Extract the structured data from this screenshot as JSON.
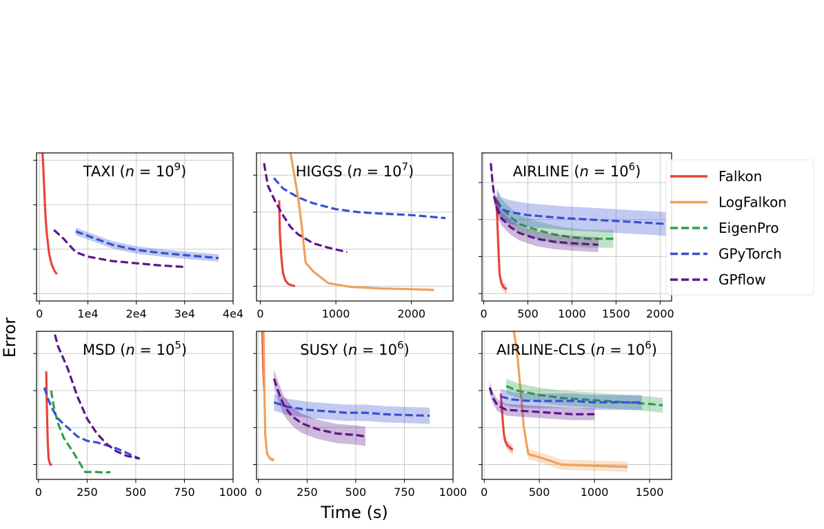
{
  "figure": {
    "ylabel": "Error",
    "xlabel": "Time (s)",
    "legend_position": "right of top-right panel",
    "series": [
      {
        "name": "Falkon",
        "color": "#e8443a",
        "style": "solid"
      },
      {
        "name": "LogFalkon",
        "color": "#f0a05a",
        "style": "solid"
      },
      {
        "name": "EigenPro",
        "color": "#2ca048",
        "style": "dashed"
      },
      {
        "name": "GPyTorch",
        "color": "#3550d2",
        "style": "dashed"
      },
      {
        "name": "GPflow",
        "color": "#5c138c",
        "style": "dashed"
      }
    ]
  },
  "chart_data": [
    {
      "type": "line",
      "title_name": "TAXI",
      "title_exp": "9",
      "xlim": [
        -600,
        40000
      ],
      "ylim": [
        0,
        10
      ],
      "xticks": [
        0,
        10000,
        20000,
        30000,
        40000
      ],
      "xtick_labels": [
        "0",
        "1e4",
        "2e4",
        "3e4",
        "4e4"
      ],
      "yticks": [
        0.5,
        3.5,
        6.5,
        9.5
      ],
      "grid": true,
      "series": [
        {
          "name": "Falkon",
          "x": [
            600,
            800,
            1000,
            1200,
            1500,
            2000,
            2500,
            3000,
            3600
          ],
          "y": [
            10.2,
            9,
            7.5,
            6,
            4.6,
            3.2,
            2.5,
            2.1,
            1.8
          ]
        },
        {
          "name": "GPyTorch",
          "x": [
            7500,
            10000,
            15000,
            20000,
            25000,
            30000,
            37000
          ],
          "y": [
            4.7,
            4.4,
            3.8,
            3.45,
            3.25,
            3.1,
            2.9
          ],
          "band": 0.25
        },
        {
          "name": "GPflow",
          "x": [
            3000,
            5000,
            7500,
            10000,
            15000,
            20000,
            25000,
            30000
          ],
          "y": [
            4.8,
            4.2,
            3.3,
            3.0,
            2.7,
            2.55,
            2.4,
            2.3
          ]
        }
      ]
    },
    {
      "type": "line",
      "title_name": "HIGGS",
      "title_exp": "7",
      "xlim": [
        -50,
        2550
      ],
      "ylim": [
        0,
        10
      ],
      "xticks": [
        0,
        1000,
        2000
      ],
      "xtick_labels": [
        "0",
        "1000",
        "2000"
      ],
      "yticks": [
        1.0,
        3.5,
        6.0,
        8.5
      ],
      "grid": true,
      "series": [
        {
          "name": "Falkon",
          "x": [
            250,
            260,
            280,
            300,
            330,
            370,
            420,
            460
          ],
          "y": [
            6.8,
            4.5,
            2.9,
            1.9,
            1.4,
            1.15,
            1.05,
            1.0
          ]
        },
        {
          "name": "LogFalkon",
          "x": [
            390,
            400,
            450,
            500,
            550,
            600,
            700,
            900,
            1200,
            1600,
            2000,
            2300
          ],
          "y": [
            10.5,
            10,
            8.5,
            7.0,
            5.0,
            2.6,
            2.0,
            1.2,
            0.95,
            0.85,
            0.8,
            0.75
          ]
        },
        {
          "name": "GPyTorch",
          "x": [
            180,
            300,
            500,
            700,
            1000,
            1300,
            1600,
            2000,
            2450
          ],
          "y": [
            8.3,
            7.6,
            7.0,
            6.6,
            6.2,
            6.0,
            5.9,
            5.8,
            5.6
          ]
        },
        {
          "name": "GPflow",
          "x": [
            50,
            100,
            200,
            300,
            400,
            500,
            700,
            900,
            1150
          ],
          "y": [
            9.3,
            7.8,
            6.7,
            5.8,
            5.0,
            4.5,
            3.9,
            3.6,
            3.3
          ]
        }
      ]
    },
    {
      "type": "line",
      "title_name": "AIRLINE",
      "title_exp": "6",
      "xlim": [
        -20,
        2130
      ],
      "ylim": [
        0,
        10
      ],
      "xticks": [
        0,
        500,
        1000,
        1500,
        2000
      ],
      "xtick_labels": [
        "0",
        "500",
        "1000",
        "1500",
        "2000"
      ],
      "yticks": [
        0.5,
        3.0,
        5.5,
        8.0
      ],
      "grid": true,
      "series": [
        {
          "name": "Falkon",
          "x": [
            140,
            150,
            160,
            170,
            180,
            200,
            230,
            260
          ],
          "y": [
            7.0,
            6.0,
            4.5,
            3.0,
            1.8,
            1.2,
            0.9,
            0.8
          ],
          "band": 0.3
        },
        {
          "name": "EigenPro",
          "x": [
            150,
            200,
            300,
            400,
            600,
            800,
            1000,
            1200,
            1470
          ],
          "y": [
            6.8,
            6.3,
            5.7,
            5.2,
            4.8,
            4.5,
            4.3,
            4.2,
            4.2
          ],
          "band": 0.6
        },
        {
          "name": "GPyTorch",
          "x": [
            150,
            200,
            300,
            500,
            700,
            900,
            1200,
            1500,
            1800,
            2070
          ],
          "y": [
            6.8,
            6.2,
            6.0,
            5.8,
            5.7,
            5.6,
            5.5,
            5.4,
            5.3,
            5.2
          ],
          "band": 0.8
        },
        {
          "name": "GPflow",
          "x": [
            80,
            100,
            120,
            150,
            200,
            300,
            400,
            600,
            800,
            1000,
            1300
          ],
          "y": [
            9.3,
            8.0,
            7.0,
            6.3,
            5.6,
            5.0,
            4.6,
            4.2,
            4.0,
            3.9,
            3.8
          ],
          "band": 0.5
        }
      ]
    },
    {
      "type": "line",
      "title_name": "MSD",
      "title_exp": "5",
      "xlim": [
        -10,
        1000
      ],
      "ylim": [
        0,
        10
      ],
      "xticks": [
        0,
        250,
        500,
        750,
        1000
      ],
      "xtick_labels": [
        "0",
        "250",
        "500",
        "750",
        "1000"
      ],
      "yticks": [
        1.0,
        3.5,
        6.0,
        8.5
      ],
      "grid": true,
      "series": [
        {
          "name": "Falkon",
          "x": [
            40,
            42,
            45,
            48,
            52,
            60,
            70
          ],
          "y": [
            7.3,
            5.5,
            3.8,
            2.4,
            1.4,
            1.0,
            1.0
          ]
        },
        {
          "name": "EigenPro",
          "x": [
            65,
            80,
            100,
            130,
            180,
            240,
            300,
            340,
            370
          ],
          "y": [
            6.0,
            4.8,
            3.8,
            2.8,
            1.8,
            0.5,
            0.5,
            0.45,
            0.5
          ]
        },
        {
          "name": "GPyTorch",
          "x": [
            30,
            50,
            70,
            100,
            150,
            200,
            250,
            300,
            400,
            520
          ],
          "y": [
            6.2,
            5.4,
            4.8,
            4.1,
            3.5,
            2.9,
            2.6,
            2.5,
            2.1,
            1.4
          ]
        },
        {
          "name": "GPflow",
          "x": [
            70,
            80,
            100,
            150,
            200,
            250,
            300,
            350,
            400,
            450,
            520
          ],
          "y": [
            10.5,
            10.0,
            9.0,
            7.5,
            5.6,
            4.1,
            3.1,
            2.4,
            1.9,
            1.6,
            1.4
          ]
        }
      ]
    },
    {
      "type": "line",
      "title_name": "SUSY",
      "title_exp": "6",
      "xlim": [
        -10,
        1000
      ],
      "ylim": [
        0,
        10
      ],
      "xticks": [
        0,
        250,
        500,
        750,
        1000
      ],
      "xtick_labels": [
        "0",
        "250",
        "500",
        "750",
        "1000"
      ],
      "yticks": [
        1.0,
        3.5,
        6.0,
        8.5
      ],
      "grid": true,
      "series": [
        {
          "name": "Falkon",
          "x": [
            20,
            22,
            25,
            28,
            30
          ],
          "y": [
            10.5,
            9.0,
            7.5,
            6.5,
            6.0
          ]
        },
        {
          "name": "LogFalkon",
          "x": [
            25,
            30,
            35,
            45,
            60,
            80
          ],
          "y": [
            10.5,
            6.5,
            3.0,
            1.7,
            1.4,
            1.3
          ],
          "band": 0.15
        },
        {
          "name": "GPyTorch",
          "x": [
            80,
            150,
            250,
            350,
            450,
            550,
            650,
            750,
            880
          ],
          "y": [
            5.2,
            4.9,
            4.7,
            4.6,
            4.5,
            4.5,
            4.4,
            4.35,
            4.3
          ],
          "band": 0.55
        },
        {
          "name": "GPflow",
          "x": [
            80,
            100,
            130,
            170,
            220,
            300,
            400,
            500,
            550
          ],
          "y": [
            6.8,
            6.0,
            5.0,
            4.3,
            3.8,
            3.4,
            3.1,
            3.0,
            2.9
          ],
          "band": 0.65
        }
      ]
    },
    {
      "type": "line",
      "title_name": "AIRLINE-CLS",
      "title_exp": "6",
      "xlim": [
        -20,
        1700
      ],
      "ylim": [
        0,
        10
      ],
      "xticks": [
        0,
        500,
        1000,
        1500
      ],
      "xtick_labels": [
        "0",
        "500",
        "1000",
        "1500"
      ],
      "yticks": [
        1.0,
        3.5,
        6.0,
        8.5
      ],
      "grid": true,
      "series": [
        {
          "name": "Falkon",
          "x": [
            150,
            160,
            170,
            180,
            190,
            210,
            240,
            260
          ],
          "y": [
            5.8,
            4.8,
            3.8,
            3.0,
            2.6,
            2.3,
            2.1,
            2.0
          ],
          "band": 0.3
        },
        {
          "name": "LogFalkon",
          "x": [
            250,
            270,
            300,
            330,
            360,
            400,
            500,
            700,
            900,
            1100,
            1300
          ],
          "y": [
            10.5,
            10.0,
            8.5,
            6.0,
            3.5,
            1.7,
            1.5,
            1.0,
            0.95,
            0.9,
            0.85
          ],
          "band": 0.35
        },
        {
          "name": "EigenPro",
          "x": [
            200,
            300,
            500,
            700,
            900,
            1100,
            1300,
            1500,
            1620
          ],
          "y": [
            6.3,
            6.0,
            5.7,
            5.5,
            5.4,
            5.3,
            5.2,
            5.1,
            5.0
          ],
          "band": 0.5
        },
        {
          "name": "GPyTorch",
          "x": [
            150,
            250,
            400,
            600,
            800,
            1000,
            1200,
            1430
          ],
          "y": [
            5.6,
            5.4,
            5.3,
            5.3,
            5.3,
            5.2,
            5.2,
            5.2
          ],
          "band": 0.5
        },
        {
          "name": "GPflow",
          "x": [
            50,
            80,
            120,
            200,
            400,
            600,
            800,
            1000
          ],
          "y": [
            6.2,
            5.5,
            5.0,
            4.7,
            4.6,
            4.5,
            4.4,
            4.4
          ],
          "band": 0.4
        }
      ]
    }
  ]
}
